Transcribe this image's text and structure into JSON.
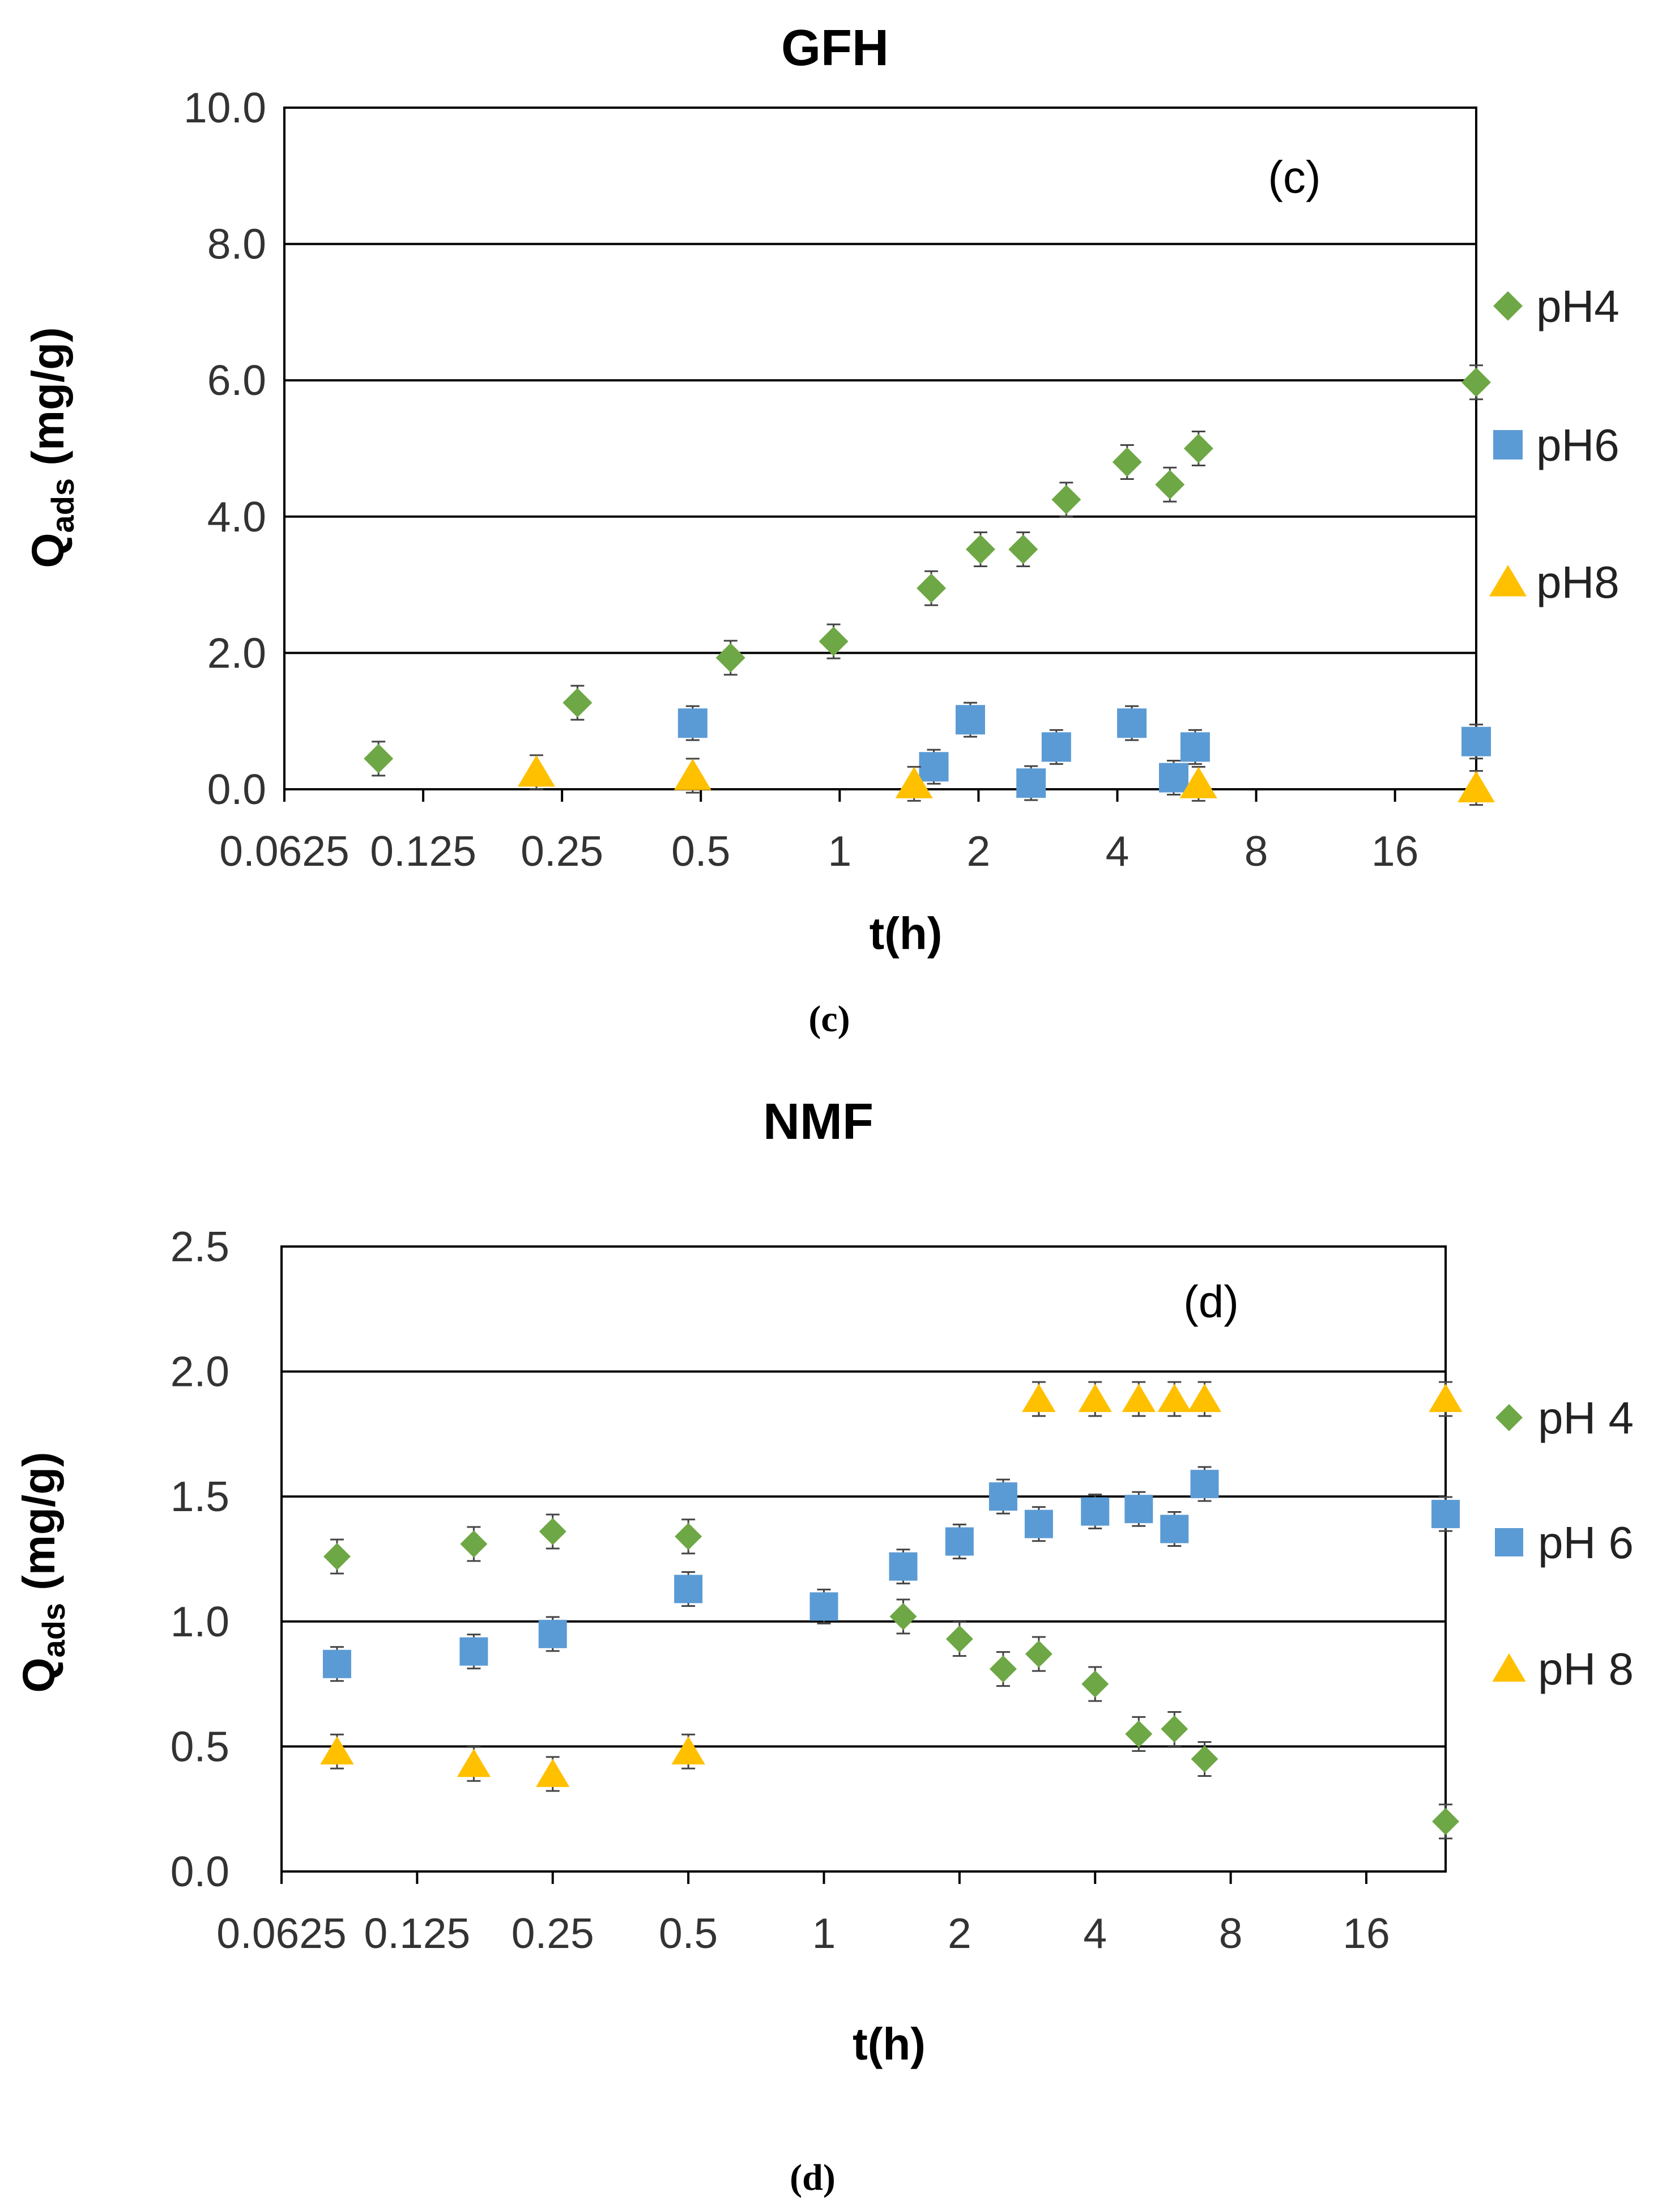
{
  "chart_data": [
    {
      "type": "scatter",
      "title": "GFH",
      "annotation": "(c)",
      "caption": "(c)",
      "xlabel": "t(h)",
      "ylabel_main": "Q",
      "ylabel_sub": "ads",
      "ylabel_rest": " (mg/g)",
      "x_scale": "log2",
      "xlim": [
        0.0625,
        24
      ],
      "ylim": [
        0,
        10
      ],
      "x_ticks": [
        0.0625,
        0.125,
        0.25,
        0.5,
        1,
        2,
        4,
        8,
        16
      ],
      "x_tick_labels": [
        "0.0625",
        "0.125",
        "0.25",
        "0.5",
        "1",
        "2",
        "4",
        "8",
        "16"
      ],
      "y_ticks": [
        0,
        2,
        4,
        6,
        8,
        10
      ],
      "y_tick_labels": [
        "0.0",
        "2.0",
        "4.0",
        "6.0",
        "8.0",
        "10.0"
      ],
      "grid": "horizontal",
      "legend_position": "right",
      "series": [
        {
          "name": "pH4",
          "marker": "diamond",
          "color": "#6ea745",
          "points": [
            {
              "x": 0.1,
              "y": 0.45
            },
            {
              "x": 0.27,
              "y": 1.27
            },
            {
              "x": 0.58,
              "y": 1.93
            },
            {
              "x": 0.97,
              "y": 2.17
            },
            {
              "x": 1.58,
              "y": 2.95
            },
            {
              "x": 2.02,
              "y": 3.52
            },
            {
              "x": 2.5,
              "y": 3.52
            },
            {
              "x": 3.1,
              "y": 4.25
            },
            {
              "x": 4.2,
              "y": 4.8
            },
            {
              "x": 5.2,
              "y": 4.47
            },
            {
              "x": 6.0,
              "y": 5.0
            },
            {
              "x": 24.0,
              "y": 5.97
            }
          ]
        },
        {
          "name": "pH6",
          "marker": "square",
          "color": "#5b9bd5",
          "points": [
            {
              "x": 0.48,
              "y": 0.97
            },
            {
              "x": 1.6,
              "y": 0.33
            },
            {
              "x": 1.92,
              "y": 1.02
            },
            {
              "x": 2.6,
              "y": 0.09
            },
            {
              "x": 2.95,
              "y": 0.62
            },
            {
              "x": 4.3,
              "y": 0.97
            },
            {
              "x": 5.3,
              "y": 0.17
            },
            {
              "x": 5.9,
              "y": 0.62
            },
            {
              "x": 24.0,
              "y": 0.7
            }
          ]
        },
        {
          "name": "pH8",
          "marker": "triangle",
          "color": "#ffc000",
          "points": [
            {
              "x": 0.22,
              "y": 0.25
            },
            {
              "x": 0.48,
              "y": 0.2
            },
            {
              "x": 1.45,
              "y": 0.08
            },
            {
              "x": 6.0,
              "y": 0.08
            },
            {
              "x": 24.0,
              "y": 0.02
            }
          ]
        }
      ]
    },
    {
      "type": "scatter",
      "title": "NMF",
      "annotation": "(d)",
      "caption": "(d)",
      "xlabel": "t(h)",
      "ylabel_main": "Q",
      "ylabel_sub": "ads",
      "ylabel_rest": " (mg/g)",
      "x_scale": "log2",
      "xlim": [
        0.0625,
        24
      ],
      "ylim": [
        0,
        2.5
      ],
      "x_ticks": [
        0.0625,
        0.125,
        0.25,
        0.5,
        1,
        2,
        4,
        8,
        16
      ],
      "x_tick_labels": [
        "0.0625",
        "0.125",
        "0.25",
        "0.5",
        "1",
        "2",
        "4",
        "8",
        "16"
      ],
      "y_ticks": [
        0,
        0.5,
        1,
        1.5,
        2,
        2.5
      ],
      "y_tick_labels": [
        "0.0",
        "0.5",
        "1.0",
        "1.5",
        "2.0",
        "2.5"
      ],
      "grid": "horizontal",
      "legend_position": "right",
      "series": [
        {
          "name": "pH 4",
          "marker": "diamond",
          "color": "#6ea745",
          "points": [
            {
              "x": 0.083,
              "y": 1.26
            },
            {
              "x": 0.167,
              "y": 1.31
            },
            {
              "x": 0.25,
              "y": 1.36
            },
            {
              "x": 0.5,
              "y": 1.34
            },
            {
              "x": 1.5,
              "y": 1.02
            },
            {
              "x": 2.0,
              "y": 0.93
            },
            {
              "x": 2.5,
              "y": 0.81
            },
            {
              "x": 3.0,
              "y": 0.87
            },
            {
              "x": 4.0,
              "y": 0.75
            },
            {
              "x": 5.0,
              "y": 0.55
            },
            {
              "x": 6.0,
              "y": 0.57
            },
            {
              "x": 7.0,
              "y": 0.45
            },
            {
              "x": 24.0,
              "y": 0.2
            }
          ]
        },
        {
          "name": "pH 6",
          "marker": "square",
          "color": "#5b9bd5",
          "points": [
            {
              "x": 0.083,
              "y": 0.83
            },
            {
              "x": 0.167,
              "y": 0.88
            },
            {
              "x": 0.25,
              "y": 0.95
            },
            {
              "x": 0.5,
              "y": 1.13
            },
            {
              "x": 1.0,
              "y": 1.06
            },
            {
              "x": 1.5,
              "y": 1.22
            },
            {
              "x": 2.0,
              "y": 1.32
            },
            {
              "x": 2.5,
              "y": 1.5
            },
            {
              "x": 3.0,
              "y": 1.39
            },
            {
              "x": 4.0,
              "y": 1.44
            },
            {
              "x": 5.0,
              "y": 1.45
            },
            {
              "x": 6.0,
              "y": 1.37
            },
            {
              "x": 7.0,
              "y": 1.55
            },
            {
              "x": 24.0,
              "y": 1.43
            }
          ]
        },
        {
          "name": "pH 8",
          "marker": "triangle",
          "color": "#ffc000",
          "points": [
            {
              "x": 0.083,
              "y": 0.48
            },
            {
              "x": 0.167,
              "y": 0.43
            },
            {
              "x": 0.25,
              "y": 0.39
            },
            {
              "x": 0.5,
              "y": 0.48
            },
            {
              "x": 3.0,
              "y": 1.89
            },
            {
              "x": 4.0,
              "y": 1.89
            },
            {
              "x": 5.0,
              "y": 1.89
            },
            {
              "x": 6.0,
              "y": 1.89
            },
            {
              "x": 7.0,
              "y": 1.89
            },
            {
              "x": 24.0,
              "y": 1.89
            }
          ]
        }
      ]
    }
  ]
}
